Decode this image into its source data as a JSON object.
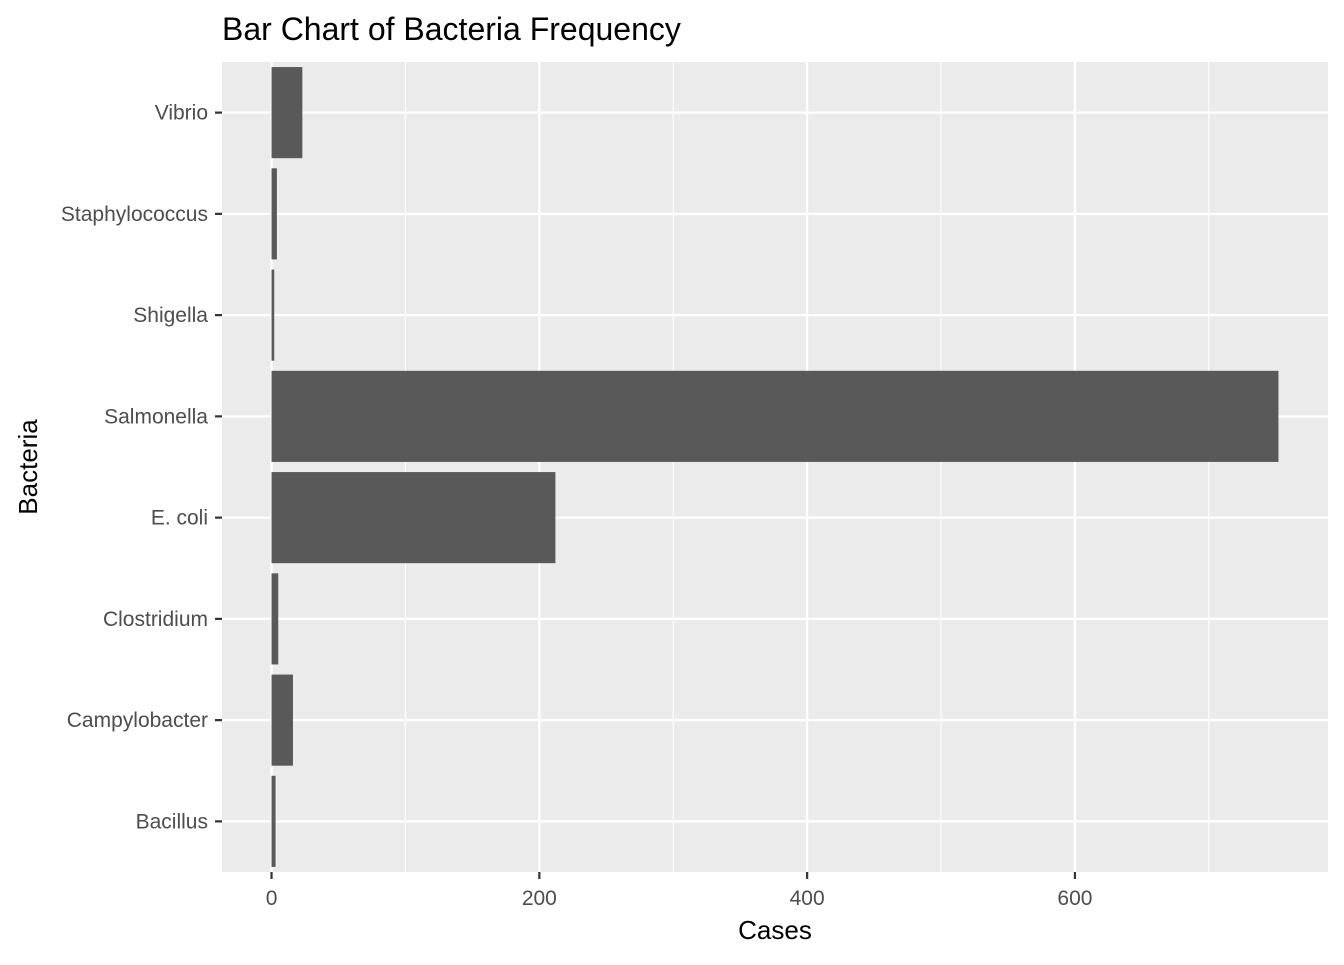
{
  "chart_data": {
    "type": "bar",
    "orientation": "horizontal",
    "title": "Bar Chart of Bacteria Frequency",
    "xlabel": "Cases",
    "ylabel": "Bacteria",
    "categories": [
      "Bacillus",
      "Campylobacter",
      "Clostridium",
      "E. coli",
      "Salmonella",
      "Shigella",
      "Staphylococcus",
      "Vibrio"
    ],
    "values": [
      3,
      16,
      5,
      212,
      752,
      2,
      4,
      23
    ],
    "xlim": [
      -37,
      789
    ],
    "x_ticks": [
      0,
      200,
      400,
      600
    ],
    "x_tick_labels": [
      "0",
      "200",
      "400",
      "600"
    ],
    "x_minor_ticks": [
      100,
      300,
      500,
      700
    ],
    "grid": true,
    "colors": {
      "panel_background": "#ebebeb",
      "grid_major": "#ffffff",
      "bar_fill": "#595959",
      "tick_mark": "#333333",
      "tick_text": "#4d4d4d",
      "title_text": "#000000"
    }
  }
}
